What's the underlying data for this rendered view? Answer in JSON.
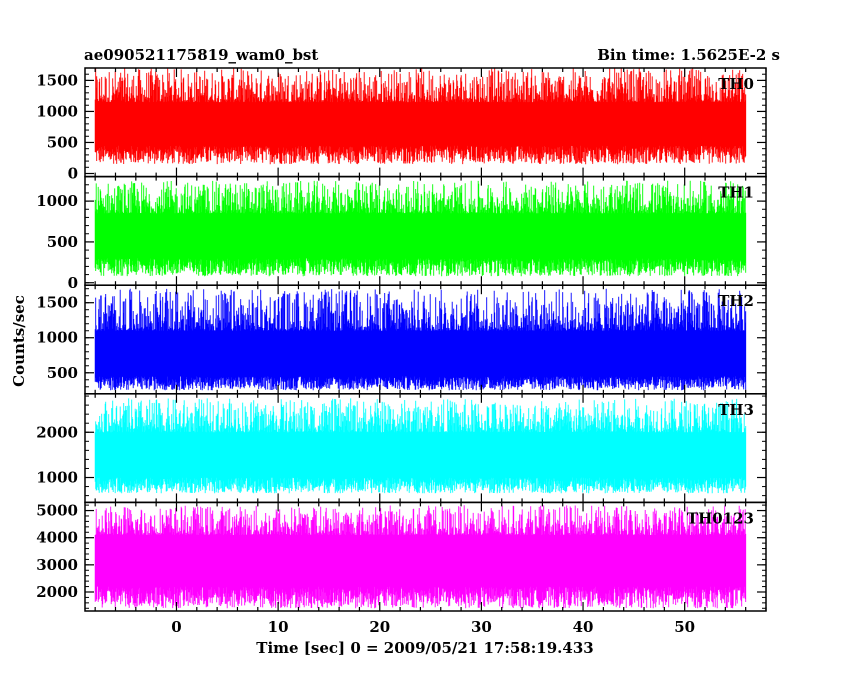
{
  "chart_data": {
    "type": "line",
    "title": "ae090521175819_wam0_bst",
    "subtitle": "Bin time: 1.5625E-2 s",
    "xlabel": "Time [sec] 0 = 2009/05/21 17:58:19.433",
    "ylabel": "Counts/sec",
    "xlim": [
      -9,
      58
    ],
    "xticks": [
      0,
      10,
      20,
      30,
      40,
      50
    ],
    "xtick_labels": [
      "0",
      "10",
      "20",
      "30",
      "40",
      "50"
    ],
    "x_data_range": [
      -8,
      56
    ],
    "panels": [
      {
        "name": "TH0",
        "color": "#ff0000",
        "ylim": [
          -50,
          1700
        ],
        "yticks": [
          0,
          500,
          1000,
          1500
        ],
        "ytick_labels": [
          "0",
          "500",
          "1000",
          "1500"
        ],
        "mean": 800,
        "low_range": [
          150,
          450
        ],
        "high_range": [
          1150,
          1700
        ]
      },
      {
        "name": "TH1",
        "color": "#00ff00",
        "ylim": [
          -30,
          1300
        ],
        "yticks": [
          0,
          500,
          1000
        ],
        "ytick_labels": [
          "0",
          "500",
          "1000"
        ],
        "mean": 580,
        "low_range": [
          80,
          300
        ],
        "high_range": [
          850,
          1250
        ]
      },
      {
        "name": "TH2",
        "color": "#0000ff",
        "ylim": [
          200,
          1750
        ],
        "yticks": [
          500,
          1000,
          1500
        ],
        "ytick_labels": [
          "500",
          "1000",
          "1500"
        ],
        "mean": 750,
        "low_range": [
          250,
          450
        ],
        "high_range": [
          1100,
          1700
        ]
      },
      {
        "name": "TH3",
        "color": "#00ffff",
        "ylim": [
          450,
          2850
        ],
        "yticks": [
          1000,
          2000
        ],
        "ytick_labels": [
          "1000",
          "2000"
        ],
        "mean": 1500,
        "low_range": [
          650,
          1000
        ],
        "high_range": [
          2000,
          2750
        ]
      },
      {
        "name": "TH0123",
        "color": "#ff00ff",
        "ylim": [
          1300,
          5300
        ],
        "yticks": [
          2000,
          3000,
          4000,
          5000
        ],
        "ytick_labels": [
          "2000",
          "3000",
          "4000",
          "5000"
        ],
        "mean": 3200,
        "low_range": [
          1400,
          2200
        ],
        "high_range": [
          4100,
          5200
        ]
      }
    ]
  }
}
